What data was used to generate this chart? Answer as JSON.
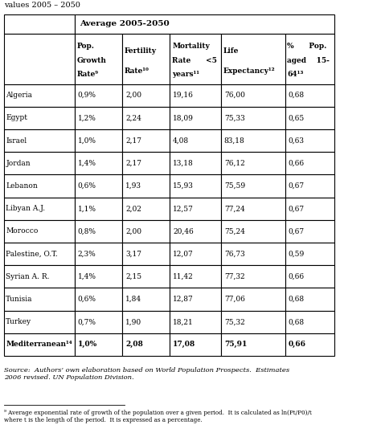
{
  "title_top": "values 2005 – 2050",
  "header_group": "Average 2005-2050",
  "col_headers": [
    "Pop.\nGrowth\nRate⁹",
    "Fertility\nRate¹⁰",
    "Mortality\nRate      <5\nyears¹¹",
    "Life\nExpectancy¹²",
    "%      Pop.\naged    15-\n64¹³"
  ],
  "countries": [
    "Algeria",
    "Egypt",
    "Israel",
    "Jordan",
    "Lebanon",
    "Libyan A.J.",
    "Morocco",
    "Palestine, O.T.",
    "Syrian A. R.",
    "Tunisia",
    "Turkey",
    "Mediterranean¹⁴"
  ],
  "bold_last_row": true,
  "data": [
    [
      "0,9%",
      "2,00",
      "19,16",
      "76,00",
      "0,68"
    ],
    [
      "1,2%",
      "2,24",
      "18,09",
      "75,33",
      "0,65"
    ],
    [
      "1,0%",
      "2,17",
      "4,08",
      "83,18",
      "0,63"
    ],
    [
      "1,4%",
      "2,17",
      "13,18",
      "76,12",
      "0,66"
    ],
    [
      "0,6%",
      "1,93",
      "15,93",
      "75,59",
      "0,67"
    ],
    [
      "1,1%",
      "2,02",
      "12,57",
      "77,24",
      "0,67"
    ],
    [
      "0,8%",
      "2,00",
      "20,46",
      "75,24",
      "0,67"
    ],
    [
      "2,3%",
      "3,17",
      "12,07",
      "76,73",
      "0,59"
    ],
    [
      "1,4%",
      "2,15",
      "11,42",
      "77,32",
      "0,66"
    ],
    [
      "0,6%",
      "1,84",
      "12,87",
      "77,06",
      "0,68"
    ],
    [
      "0,7%",
      "1,90",
      "18,21",
      "75,32",
      "0,68"
    ],
    [
      "1,0%",
      "2,08",
      "17,08",
      "75,91",
      "0,66"
    ]
  ],
  "source_text": "Source:  Authors’ own elaboration based on World Population Prospects.  Estimates\n2006 revised. UN Population Division.",
  "footnote_text": "⁹ Average exponential rate of growth of the population over a given period.  It is calculated as ln(Pt/P0)/t\nwhere t is the length of the period.  It is expressed as a percentage.",
  "bg_color": "#ffffff",
  "grid_color": "#000000"
}
